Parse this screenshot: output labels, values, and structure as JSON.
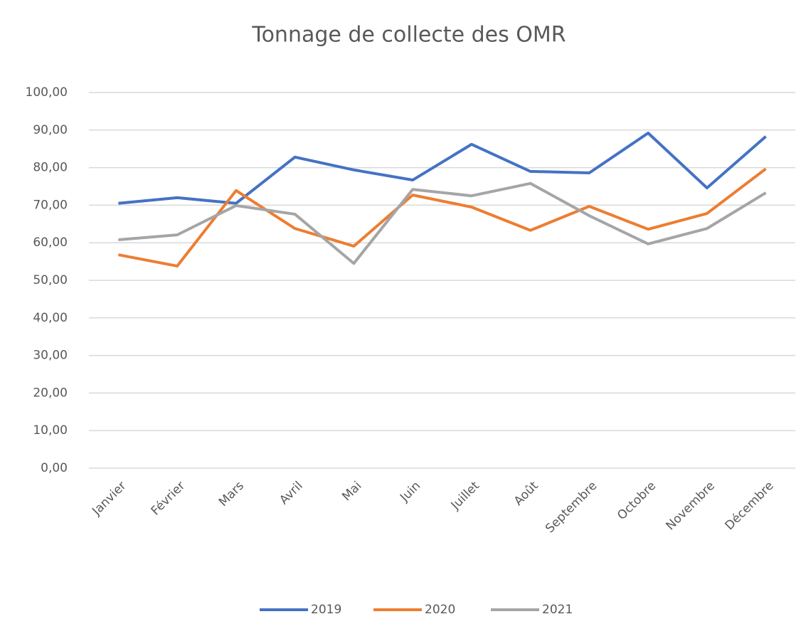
{
  "chart_data": {
    "type": "line",
    "title": "Tonnage de collecte des OMR",
    "categories": [
      "Janvier",
      "Février",
      "Mars",
      "Avril",
      "Mai",
      "Juin",
      "Juillet",
      "Août",
      "Septembre",
      "Octobre",
      "Novembre",
      "Décembre"
    ],
    "series": [
      {
        "name": "2019",
        "color": "#4472c4",
        "values": [
          70.5,
          72.0,
          70.5,
          82.8,
          79.4,
          76.7,
          86.2,
          79.0,
          78.6,
          89.2,
          74.6,
          88.3
        ]
      },
      {
        "name": "2020",
        "color": "#ed7d31",
        "values": [
          56.8,
          53.8,
          73.9,
          63.8,
          59.1,
          72.7,
          69.5,
          63.3,
          69.7,
          63.6,
          67.8,
          79.7
        ]
      },
      {
        "name": "2021",
        "color": "#a5a5a5",
        "values": [
          60.8,
          62.1,
          69.9,
          67.6,
          54.5,
          74.2,
          72.5,
          75.8,
          67.2,
          59.7,
          63.8,
          73.3
        ]
      }
    ],
    "ylim": [
      0,
      100
    ],
    "yticks": [
      {
        "value": 0,
        "label": "0,00"
      },
      {
        "value": 10,
        "label": "10,00"
      },
      {
        "value": 20,
        "label": "20,00"
      },
      {
        "value": 30,
        "label": "30,00"
      },
      {
        "value": 40,
        "label": "40,00"
      },
      {
        "value": 50,
        "label": "50,00"
      },
      {
        "value": 60,
        "label": "60,00"
      },
      {
        "value": 70,
        "label": "70,00"
      },
      {
        "value": 80,
        "label": "80,00"
      },
      {
        "value": 90,
        "label": "90,00"
      },
      {
        "value": 100,
        "label": "100,00"
      }
    ],
    "grid": true,
    "legend": "bottom"
  }
}
